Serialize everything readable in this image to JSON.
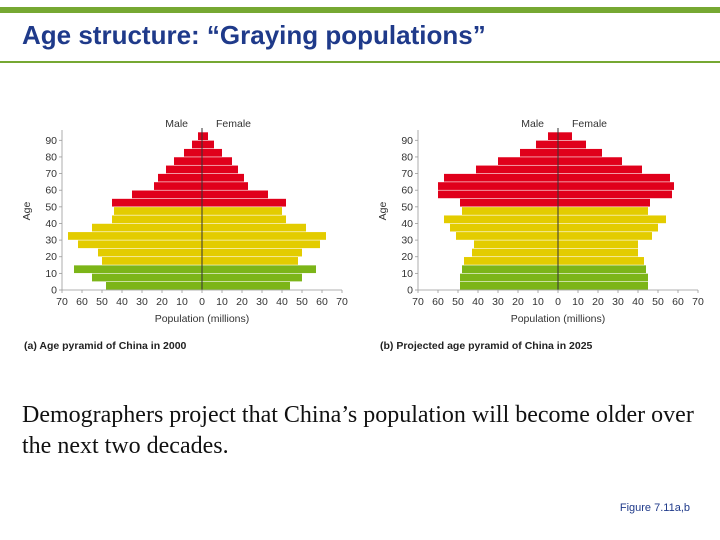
{
  "slide": {
    "title": "Age structure: “Graying populations”",
    "body": "Demographers project that China’s population will become older over the next two decades.",
    "figure_ref": "Figure 7.11a,b"
  },
  "colors": {
    "accent": "#76a832",
    "title": "#1f3a8a",
    "elderly": "#e0001b",
    "adult": "#e3cc00",
    "young": "#7cb518"
  },
  "chart_data": [
    {
      "type": "bar",
      "title": "(a) Age pyramid of China in 2000",
      "xlabel": "Population (millions)",
      "ylabel": "Age",
      "legend": {
        "male": "Male",
        "female": "Female"
      },
      "xlim": [
        -70,
        70
      ],
      "xticks": [
        "70",
        "60",
        "50",
        "40",
        "30",
        "20",
        "10",
        "0",
        "10",
        "20",
        "30",
        "40",
        "50",
        "60",
        "70"
      ],
      "yticks": [
        "0",
        "10",
        "20",
        "30",
        "40",
        "50",
        "60",
        "70",
        "80",
        "90"
      ],
      "age_groups": [
        "0-4",
        "5-9",
        "10-14",
        "15-19",
        "20-24",
        "25-29",
        "30-34",
        "35-39",
        "40-44",
        "45-49",
        "50-54",
        "55-59",
        "60-64",
        "65-69",
        "70-74",
        "75-79",
        "80-84",
        "85-89",
        "90+"
      ],
      "series": [
        {
          "name": "Male",
          "values": [
            48,
            55,
            64,
            50,
            52,
            62,
            67,
            55,
            45,
            44,
            45,
            35,
            24,
            22,
            18,
            14,
            9,
            5,
            2
          ]
        },
        {
          "name": "Female",
          "values": [
            44,
            50,
            57,
            48,
            50,
            59,
            62,
            52,
            42,
            40,
            42,
            33,
            23,
            21,
            18,
            15,
            10,
            6,
            3
          ]
        }
      ]
    },
    {
      "type": "bar",
      "title": "(b) Projected age pyramid of China in 2025",
      "xlabel": "Population (millions)",
      "ylabel": "Age",
      "legend": {
        "male": "Male",
        "female": "Female"
      },
      "xlim": [
        -70,
        70
      ],
      "xticks": [
        "70",
        "60",
        "50",
        "40",
        "30",
        "20",
        "10",
        "0",
        "10",
        "20",
        "30",
        "40",
        "50",
        "60",
        "70"
      ],
      "yticks": [
        "0",
        "10",
        "20",
        "30",
        "40",
        "50",
        "60",
        "70",
        "80",
        "90"
      ],
      "age_groups": [
        "0-4",
        "5-9",
        "10-14",
        "15-19",
        "20-24",
        "25-29",
        "30-34",
        "35-39",
        "40-44",
        "45-49",
        "50-54",
        "55-59",
        "60-64",
        "65-69",
        "70-74",
        "75-79",
        "80-84",
        "85-89",
        "90+"
      ],
      "series": [
        {
          "name": "Male",
          "values": [
            49,
            49,
            48,
            47,
            43,
            42,
            51,
            54,
            57,
            48,
            49,
            60,
            60,
            57,
            41,
            30,
            19,
            11,
            5
          ]
        },
        {
          "name": "Female",
          "values": [
            45,
            45,
            44,
            43,
            40,
            40,
            47,
            50,
            54,
            45,
            46,
            57,
            58,
            56,
            42,
            32,
            22,
            14,
            7
          ]
        }
      ]
    }
  ]
}
